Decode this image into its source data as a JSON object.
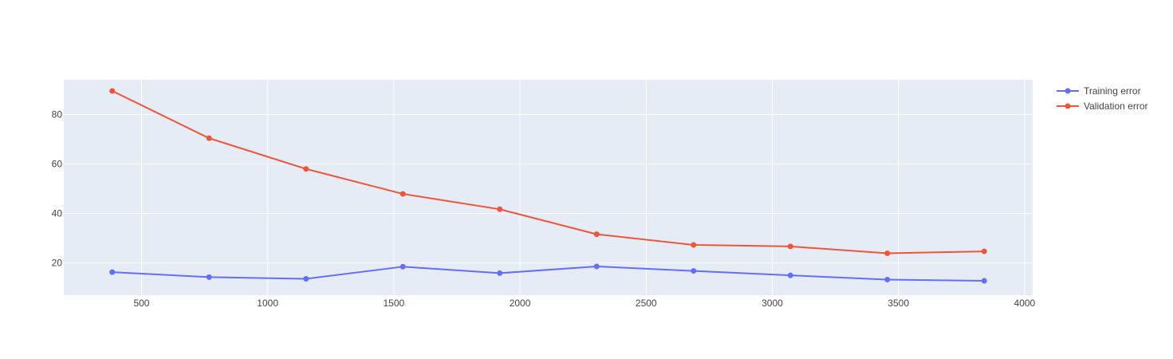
{
  "chart_data": {
    "type": "line",
    "title": "",
    "xlabel": "",
    "ylabel": "",
    "xlim": [
      192,
      4032
    ],
    "ylim": [
      7,
      94
    ],
    "x_ticks": [
      500,
      1000,
      1500,
      2000,
      2500,
      3000,
      3500,
      4000
    ],
    "y_ticks": [
      20,
      40,
      60,
      80
    ],
    "grid": true,
    "legend_position": "top-right",
    "plot_background": "#E5ECF6",
    "series": [
      {
        "name": "Training error",
        "color": "#636EFA",
        "x": [
          384,
          768,
          1152,
          1536,
          1920,
          2304,
          2688,
          3072,
          3456,
          3840
        ],
        "y": [
          16.3,
          14.3,
          13.6,
          18.5,
          15.9,
          18.6,
          16.8,
          15.0,
          13.3,
          12.8
        ]
      },
      {
        "name": "Validation error",
        "color": "#EF553B",
        "x": [
          384,
          768,
          1152,
          1536,
          1920,
          2304,
          2688,
          3072,
          3456,
          3840
        ],
        "y": [
          89.5,
          70.4,
          58.0,
          47.9,
          41.7,
          31.6,
          27.3,
          26.7,
          23.9,
          24.7
        ]
      }
    ]
  }
}
